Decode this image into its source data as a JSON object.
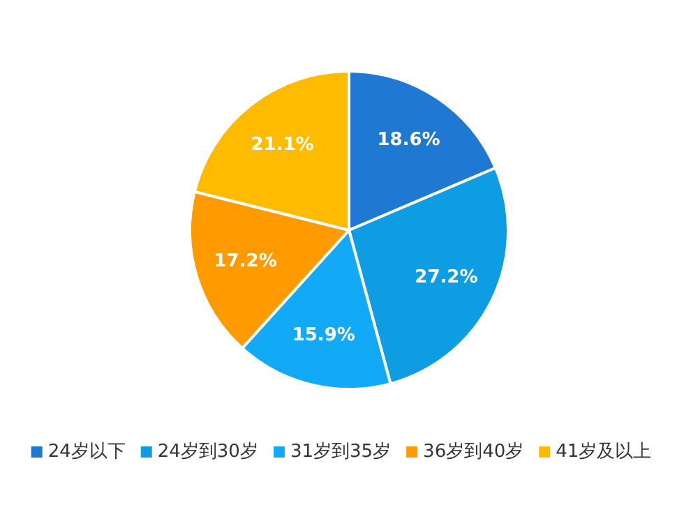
{
  "chart_data": {
    "type": "pie",
    "categories": [
      "24岁以下",
      "24岁到30岁",
      "31岁到35岁",
      "36岁到40岁",
      "41岁及以上"
    ],
    "values": [
      18.6,
      27.2,
      15.9,
      17.2,
      21.1
    ],
    "value_labels": [
      "18.6%",
      "27.2%",
      "15.9%",
      "17.2%",
      "21.1%"
    ],
    "colors": [
      "#1f78d1",
      "#0e9ce2",
      "#12aaf7",
      "#ff9b00",
      "#ffbb00"
    ],
    "legend": "bottom"
  }
}
